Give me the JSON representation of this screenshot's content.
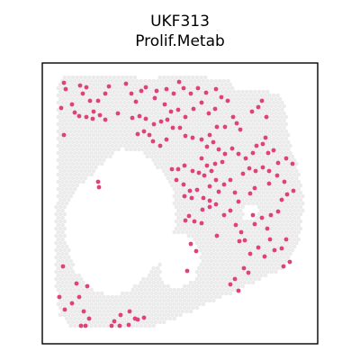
{
  "chart": {
    "title_line1": "UKF313",
    "title_line2": "Prolif.Metab"
  },
  "chart_data": {
    "type": "scatter",
    "title": "UKF313\nProlif.Metab",
    "xlabel": "",
    "ylabel": "",
    "axes_ticks": "none",
    "background_spot_color": "#ebebeb",
    "highlight_color": "#e0417a",
    "series": [
      {
        "name": "",
        "points": [
          [
            71,
            92
          ],
          [
            73,
            99
          ],
          [
            89,
            95
          ],
          [
            96,
            97
          ],
          [
            92,
            104
          ],
          [
            100,
            112
          ],
          [
            109,
            112
          ],
          [
            80,
            116
          ],
          [
            83,
            125
          ],
          [
            88,
            129
          ],
          [
            104,
            124
          ],
          [
            111,
            128
          ],
          [
            117,
            133
          ],
          [
            96,
            130
          ],
          [
            103,
            132
          ],
          [
            68,
            120
          ],
          [
            71,
            150
          ],
          [
            117,
            104
          ],
          [
            121,
            96
          ],
          [
            140,
            93
          ],
          [
            146,
            104
          ],
          [
            151,
            113
          ],
          [
            131,
            126
          ],
          [
            147,
            131
          ],
          [
            155,
            129
          ],
          [
            162,
            132
          ],
          [
            157,
            101
          ],
          [
            162,
            97
          ],
          [
            174,
            101
          ],
          [
            185,
            99
          ],
          [
            193,
            104
          ],
          [
            199,
            91
          ],
          [
            204,
            98
          ],
          [
            212,
            104
          ],
          [
            220,
            98
          ],
          [
            229,
            103
          ],
          [
            240,
            99
          ],
          [
            246,
            108
          ],
          [
            253,
            112
          ],
          [
            172,
            109
          ],
          [
            183,
            116
          ],
          [
            190,
            124
          ],
          [
            198,
            122
          ],
          [
            206,
            130
          ],
          [
            215,
            121
          ],
          [
            224,
            114
          ],
          [
            232,
            126
          ],
          [
            239,
            121
          ],
          [
            259,
            130
          ],
          [
            263,
            137
          ],
          [
            267,
            144
          ],
          [
            250,
            141
          ],
          [
            241,
            141
          ],
          [
            233,
            150
          ],
          [
            224,
            155
          ],
          [
            230,
            163
          ],
          [
            237,
            158
          ],
          [
            243,
            166
          ],
          [
            250,
            171
          ],
          [
            258,
            165
          ],
          [
            265,
            171
          ],
          [
            273,
            176
          ],
          [
            281,
            170
          ],
          [
            285,
            162
          ],
          [
            292,
            160
          ],
          [
            298,
            170
          ],
          [
            304,
            167
          ],
          [
            171,
            138
          ],
          [
            179,
            135
          ],
          [
            186,
            133
          ],
          [
            192,
            142
          ],
          [
            200,
            142
          ],
          [
            206,
            151
          ],
          [
            214,
            153
          ],
          [
            185,
            155
          ],
          [
            178,
            162
          ],
          [
            160,
            146
          ],
          [
            166,
            150
          ],
          [
            170,
            157
          ],
          [
            153,
            149
          ],
          [
            224,
            176
          ],
          [
            230,
            184
          ],
          [
            239,
            182
          ],
          [
            247,
            180
          ],
          [
            235,
            190
          ],
          [
            227,
            195
          ],
          [
            221,
            192
          ],
          [
            214,
            190
          ],
          [
            205,
            184
          ],
          [
            198,
            188
          ],
          [
            191,
            188
          ],
          [
            196,
            200
          ],
          [
            204,
            205
          ],
          [
            211,
            212
          ],
          [
            219,
            211
          ],
          [
            226,
            220
          ],
          [
            233,
            223
          ],
          [
            240,
            227
          ],
          [
            233,
            230
          ],
          [
            225,
            233
          ],
          [
            243,
            213
          ],
          [
            249,
            205
          ],
          [
            256,
            200
          ],
          [
            240,
            200
          ],
          [
            233,
            207
          ],
          [
            213,
            220
          ],
          [
            205,
            218
          ],
          [
            261,
            214
          ],
          [
            265,
            224
          ],
          [
            256,
            234
          ],
          [
            249,
            239
          ],
          [
            262,
            250
          ],
          [
            268,
            258
          ],
          [
            272,
            267
          ],
          [
            266,
            268
          ],
          [
            281,
            239
          ],
          [
            283,
            249
          ],
          [
            291,
            242
          ],
          [
            297,
            254
          ],
          [
            301,
            239
          ],
          [
            309,
            235
          ],
          [
            313,
            222
          ],
          [
            319,
            216
          ],
          [
            326,
            212
          ],
          [
            316,
            202
          ],
          [
            308,
            195
          ],
          [
            299,
            190
          ],
          [
            292,
            186
          ],
          [
            284,
            190
          ],
          [
            277,
            187
          ],
          [
            270,
            193
          ],
          [
            309,
            181
          ],
          [
            318,
            176
          ],
          [
            325,
            182
          ],
          [
            299,
            204
          ],
          [
            283,
            209
          ],
          [
            278,
            215
          ],
          [
            300,
            266
          ],
          [
            305,
            278
          ],
          [
            313,
            276
          ],
          [
            318,
            266
          ],
          [
            322,
            291
          ],
          [
            315,
            296
          ],
          [
            294,
            285
          ],
          [
            287,
            275
          ],
          [
            278,
            282
          ],
          [
            271,
            298
          ],
          [
            276,
            303
          ],
          [
            261,
            310
          ],
          [
            256,
            316
          ],
          [
            265,
            323
          ],
          [
            210,
            240
          ],
          [
            206,
            245
          ],
          [
            216,
            246
          ],
          [
            224,
            248
          ],
          [
            212,
            271
          ],
          [
            218,
            279
          ],
          [
            241,
            262
          ],
          [
            208,
            301
          ],
          [
            109,
            202
          ],
          [
            110,
            208
          ],
          [
            85,
            315
          ],
          [
            97,
            318
          ],
          [
            88,
            330
          ],
          [
            80,
            337
          ],
          [
            72,
            344
          ],
          [
            66,
            330
          ],
          [
            93,
            346
          ],
          [
            99,
            354
          ],
          [
            90,
            362
          ],
          [
            95,
            362
          ],
          [
            127,
            357
          ],
          [
            134,
            350
          ],
          [
            144,
            346
          ],
          [
            150,
            354
          ],
          [
            143,
            361
          ],
          [
            153,
            355
          ],
          [
            160,
            353
          ],
          [
            133,
            362
          ],
          [
            124,
            362
          ],
          [
            70,
            296
          ],
          [
            295,
            153
          ],
          [
            296,
            130
          ],
          [
            287,
            119
          ],
          [
            291,
            112
          ],
          [
            280,
            124
          ]
        ]
      }
    ]
  }
}
